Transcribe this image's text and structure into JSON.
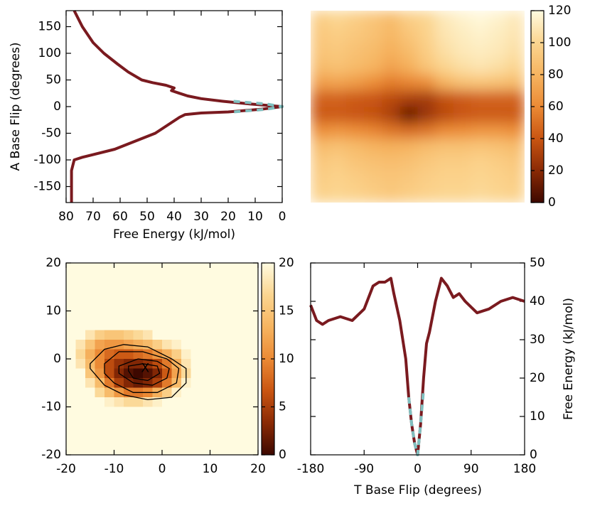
{
  "chart_data": [
    {
      "type": "line",
      "orientation": "horizontal",
      "xlabel": "Free Energy (kJ/mol)",
      "ylabel": "A Base Flip (degrees)",
      "xlim": [
        80,
        0
      ],
      "xticks": [
        80,
        70,
        60,
        50,
        40,
        30,
        20,
        10,
        0
      ],
      "ylim": [
        -180,
        180
      ],
      "yticks": [
        -150,
        -100,
        -50,
        0,
        50,
        100,
        150
      ],
      "series": [
        {
          "color": "#7a1a1f",
          "dashed": false,
          "y": [
            180,
            150,
            120,
            100,
            80,
            65,
            50,
            45,
            40,
            35,
            30,
            25,
            20,
            15,
            10,
            5,
            0,
            -5,
            -10,
            -12,
            -15,
            -20,
            -30,
            -40,
            -50,
            -60,
            -80,
            -95,
            -100,
            -120,
            -150,
            -180
          ],
          "values": [
            77,
            74,
            70,
            66,
            61,
            57,
            52,
            48,
            43,
            40,
            41,
            38,
            35,
            30,
            22,
            12,
            0,
            8,
            20,
            30,
            36,
            38,
            41,
            44,
            47,
            52,
            62,
            74,
            77,
            78,
            78,
            78
          ]
        },
        {
          "color": "#80c0c0",
          "dashed": true,
          "y": [
            10,
            5,
            0,
            -5,
            -10
          ],
          "values": [
            18,
            6,
            0,
            6,
            18
          ]
        }
      ]
    },
    {
      "type": "heatmap",
      "zlim": [
        0,
        120
      ],
      "zticks": [
        0,
        20,
        40,
        60,
        80,
        100,
        120
      ],
      "smooth": true,
      "colormap": [
        "#3d0800",
        "#8a2a05",
        "#c95512",
        "#eb8a35",
        "#f6b460",
        "#fbd590",
        "#fffbe0"
      ],
      "z": [
        [
          95,
          100,
          95,
          90,
          85,
          95,
          100,
          110,
          115,
          118,
          115,
          110
        ],
        [
          92,
          95,
          92,
          88,
          82,
          90,
          98,
          108,
          112,
          115,
          112,
          108
        ],
        [
          90,
          92,
          88,
          84,
          78,
          85,
          95,
          105,
          110,
          112,
          110,
          105
        ],
        [
          85,
          88,
          84,
          80,
          72,
          78,
          90,
          100,
          105,
          108,
          105,
          100
        ],
        [
          70,
          72,
          68,
          62,
          55,
          58,
          62,
          80,
          88,
          90,
          88,
          85
        ],
        [
          45,
          45,
          42,
          40,
          35,
          30,
          28,
          38,
          42,
          45,
          45,
          45
        ],
        [
          42,
          42,
          40,
          38,
          30,
          10,
          25,
          35,
          40,
          42,
          42,
          42
        ],
        [
          62,
          65,
          62,
          58,
          52,
          48,
          52,
          60,
          62,
          65,
          65,
          62
        ],
        [
          85,
          88,
          84,
          80,
          78,
          80,
          85,
          88,
          88,
          90,
          88,
          85
        ],
        [
          92,
          95,
          90,
          88,
          86,
          88,
          92,
          95,
          95,
          98,
          95,
          92
        ],
        [
          95,
          98,
          95,
          92,
          90,
          92,
          96,
          98,
          98,
          100,
          98,
          95
        ],
        [
          98,
          100,
          98,
          95,
          92,
          95,
          98,
          100,
          100,
          102,
          100,
          98
        ]
      ]
    },
    {
      "type": "heatmap",
      "zlim": [
        0,
        20
      ],
      "zticks": [
        0,
        5,
        10,
        15,
        20
      ],
      "smooth": false,
      "xlim": [
        -20,
        20
      ],
      "xticks": [
        -20,
        -10,
        0,
        10,
        20
      ],
      "ylim": [
        -20,
        20
      ],
      "yticks": [
        -20,
        -10,
        0,
        10,
        20
      ],
      "colormap": [
        "#3d0800",
        "#8a2a05",
        "#c95512",
        "#eb8a35",
        "#f6b460",
        "#fbd590",
        "#fffbe0"
      ],
      "z": [
        [
          20,
          20,
          20,
          20,
          20,
          20,
          20,
          20,
          20,
          20,
          20,
          20,
          20,
          20,
          20,
          20,
          20,
          20,
          20,
          20
        ],
        [
          20,
          20,
          20,
          20,
          20,
          20,
          20,
          20,
          20,
          20,
          20,
          20,
          20,
          20,
          20,
          20,
          20,
          20,
          20,
          20
        ],
        [
          20,
          20,
          20,
          20,
          20,
          20,
          20,
          20,
          20,
          20,
          20,
          20,
          20,
          20,
          20,
          20,
          20,
          20,
          20,
          20
        ],
        [
          20,
          20,
          20,
          20,
          20,
          20,
          20,
          20,
          20,
          20,
          20,
          20,
          20,
          20,
          20,
          20,
          20,
          20,
          20,
          20
        ],
        [
          20,
          20,
          20,
          20,
          20,
          20,
          20,
          20,
          20,
          20,
          20,
          20,
          20,
          20,
          20,
          20,
          20,
          20,
          20,
          20
        ],
        [
          20,
          20,
          20,
          20,
          20,
          20,
          20,
          20,
          20,
          20,
          20,
          20,
          20,
          20,
          20,
          20,
          20,
          20,
          20,
          20
        ],
        [
          20,
          20,
          20,
          20,
          20,
          20,
          20,
          20,
          20,
          20,
          20,
          20,
          20,
          20,
          20,
          20,
          20,
          20,
          20,
          20
        ],
        [
          20,
          20,
          18,
          16,
          15,
          15,
          16,
          17,
          18,
          20,
          20,
          20,
          20,
          20,
          20,
          20,
          20,
          20,
          20,
          20
        ],
        [
          20,
          18,
          15,
          12,
          11,
          11,
          12,
          13,
          14,
          16,
          18,
          19,
          20,
          20,
          20,
          20,
          20,
          20,
          20,
          20
        ],
        [
          20,
          17,
          13,
          10,
          8,
          7,
          7,
          8,
          9,
          11,
          13,
          16,
          19,
          20,
          20,
          20,
          20,
          20,
          20,
          20
        ],
        [
          20,
          18,
          14,
          10,
          6,
          4,
          3,
          3,
          4,
          6,
          9,
          13,
          18,
          20,
          20,
          20,
          20,
          20,
          20,
          20
        ],
        [
          20,
          20,
          15,
          11,
          6,
          3,
          1,
          0,
          1,
          3,
          7,
          12,
          17,
          20,
          20,
          20,
          20,
          20,
          20,
          20
        ],
        [
          20,
          20,
          18,
          14,
          9,
          5,
          3,
          2,
          3,
          5,
          9,
          14,
          19,
          20,
          20,
          20,
          20,
          20,
          20,
          20
        ],
        [
          20,
          20,
          20,
          17,
          14,
          11,
          9,
          9,
          10,
          13,
          16,
          19,
          20,
          20,
          20,
          20,
          20,
          20,
          20,
          20
        ],
        [
          20,
          20,
          20,
          20,
          19,
          18,
          17,
          17,
          18,
          19,
          20,
          20,
          20,
          20,
          20,
          20,
          20,
          20,
          20,
          20
        ],
        [
          20,
          20,
          20,
          20,
          20,
          20,
          20,
          20,
          20,
          20,
          20,
          20,
          20,
          20,
          20,
          20,
          20,
          20,
          20,
          20
        ],
        [
          20,
          20,
          20,
          20,
          20,
          20,
          20,
          20,
          20,
          20,
          20,
          20,
          20,
          20,
          20,
          20,
          20,
          20,
          20,
          20
        ],
        [
          20,
          20,
          20,
          20,
          20,
          20,
          20,
          20,
          20,
          20,
          20,
          20,
          20,
          20,
          20,
          20,
          20,
          20,
          20,
          20
        ],
        [
          20,
          20,
          20,
          20,
          20,
          20,
          20,
          20,
          20,
          20,
          20,
          20,
          20,
          20,
          20,
          20,
          20,
          20,
          20,
          20
        ],
        [
          20,
          20,
          20,
          20,
          20,
          20,
          20,
          20,
          20,
          20,
          20,
          20,
          20,
          20,
          20,
          20,
          20,
          20,
          20,
          20
        ]
      ],
      "contours": [
        {
          "x": [
            -15,
            -12,
            -8,
            -3,
            2,
            5,
            5,
            2,
            -3,
            -8,
            -12,
            -15
          ],
          "y": [
            -1,
            2,
            3,
            2.5,
            0,
            -2,
            -5,
            -8,
            -8.5,
            -7.5,
            -5.5,
            -2
          ]
        },
        {
          "x": [
            -12,
            -9,
            -4,
            1,
            3.5,
            3,
            -1,
            -6,
            -10,
            -12
          ],
          "y": [
            -1,
            1.5,
            1.5,
            0,
            -2,
            -5,
            -7,
            -7,
            -5,
            -3
          ]
        },
        {
          "x": [
            -9,
            -5,
            -1,
            1.5,
            1,
            -2,
            -6,
            -9
          ],
          "y": [
            -1.5,
            0,
            -0.5,
            -2,
            -4,
            -5.5,
            -5,
            -3
          ]
        },
        {
          "x": [
            -7,
            -4,
            -1,
            -0.5,
            -3,
            -6,
            -7
          ],
          "y": [
            -1.5,
            -1,
            -1.5,
            -3,
            -4.5,
            -4,
            -2.5
          ]
        }
      ],
      "annotation": {
        "text": "X",
        "x": -3.5,
        "y": -2
      }
    },
    {
      "type": "line",
      "orientation": "vertical",
      "xlabel": "T Base Flip (degrees)",
      "y2label": "Free Energy (kJ/mol)",
      "xlim": [
        -180,
        180
      ],
      "xticks": [
        -180,
        -90,
        0,
        90,
        180
      ],
      "y2lim": [
        0,
        50
      ],
      "y2ticks": [
        0,
        10,
        20,
        30,
        40,
        50
      ],
      "series": [
        {
          "color": "#7a1a1f",
          "dashed": false,
          "axis": "y2",
          "x": [
            -180,
            -170,
            -160,
            -150,
            -130,
            -110,
            -90,
            -75,
            -65,
            -55,
            -45,
            -40,
            -30,
            -20,
            -15,
            -10,
            -5,
            0,
            5,
            10,
            15,
            20,
            30,
            40,
            50,
            60,
            70,
            80,
            100,
            120,
            140,
            160,
            180
          ],
          "values": [
            39,
            35,
            34,
            35,
            36,
            35,
            38,
            44,
            45,
            45,
            46,
            42,
            35,
            25,
            15,
            8,
            3,
            0,
            8,
            20,
            29,
            32,
            40,
            46,
            44,
            41,
            42,
            40,
            37,
            38,
            40,
            41,
            40
          ]
        },
        {
          "color": "#80c0c0",
          "dashed": true,
          "axis": "y2",
          "x": [
            -15,
            -10,
            -5,
            0,
            5,
            10
          ],
          "values": [
            15,
            8,
            3,
            0,
            8,
            17
          ]
        }
      ]
    }
  ]
}
